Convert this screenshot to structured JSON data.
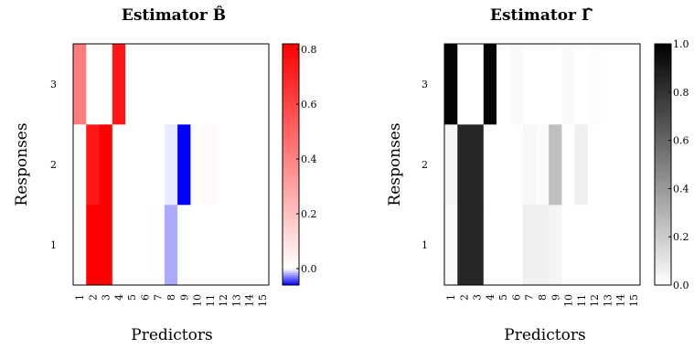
{
  "chart_data": [
    {
      "type": "heatmap",
      "title": "Estimator B̂",
      "xlabel": "Predictors",
      "ylabel": "Responses",
      "x_categories": [
        "1",
        "2",
        "3",
        "4",
        "5",
        "6",
        "7",
        "8",
        "9",
        "10",
        "11",
        "12",
        "13",
        "14",
        "15"
      ],
      "y_categories": [
        "1",
        "2",
        "3"
      ],
      "colorbar": {
        "colors": [
          "#0000ff",
          "#ffffff",
          "#ff0000"
        ],
        "range": [
          -0.06,
          0.82
        ],
        "ticks": [
          0.0,
          0.2,
          0.4,
          0.6,
          0.8
        ],
        "tick_labels": [
          "0.0",
          "0.2",
          "0.4",
          "0.6",
          "0.8"
        ]
      },
      "values": [
        [
          0,
          0.82,
          0.82,
          0,
          0,
          0,
          0.005,
          -0.02,
          0,
          0,
          0,
          0,
          0,
          0,
          0
        ],
        [
          0,
          0.75,
          0.82,
          0,
          0,
          0,
          0,
          -0.005,
          -0.06,
          0,
          0.015,
          0,
          0,
          0,
          0
        ],
        [
          0.42,
          0,
          0,
          0.75,
          0,
          0,
          0,
          0,
          0,
          0,
          0,
          0,
          0,
          0,
          0
        ]
      ]
    },
    {
      "type": "heatmap",
      "title": "Estimator Γ̂",
      "xlabel": "Predictors",
      "ylabel": "Responses",
      "x_categories": [
        "1",
        "2",
        "3",
        "4",
        "5",
        "6",
        "7",
        "8",
        "9",
        "10",
        "11",
        "12",
        "13",
        "14",
        "15"
      ],
      "y_categories": [
        "1",
        "2",
        "3"
      ],
      "colorbar": {
        "colors": [
          "#ffffff",
          "#000000"
        ],
        "range": [
          0,
          1
        ],
        "ticks": [
          0.0,
          0.2,
          0.4,
          0.6,
          0.8,
          1.0
        ],
        "tick_labels": [
          "0.0",
          "0.2",
          "0.4",
          "0.6",
          "0.8",
          "1.0"
        ]
      },
      "values": [
        [
          0.02,
          0.85,
          0.85,
          0,
          0,
          0,
          0.06,
          0.06,
          0.04,
          0,
          0,
          0,
          0,
          0,
          0
        ],
        [
          0.04,
          0.85,
          0.85,
          0,
          0,
          0,
          0.03,
          0.02,
          0.25,
          0,
          0.06,
          0,
          0,
          0,
          0
        ],
        [
          0.98,
          0,
          0,
          0.98,
          0,
          0.02,
          0,
          0,
          0,
          0.02,
          0,
          0.01,
          0,
          0,
          0
        ]
      ]
    }
  ]
}
